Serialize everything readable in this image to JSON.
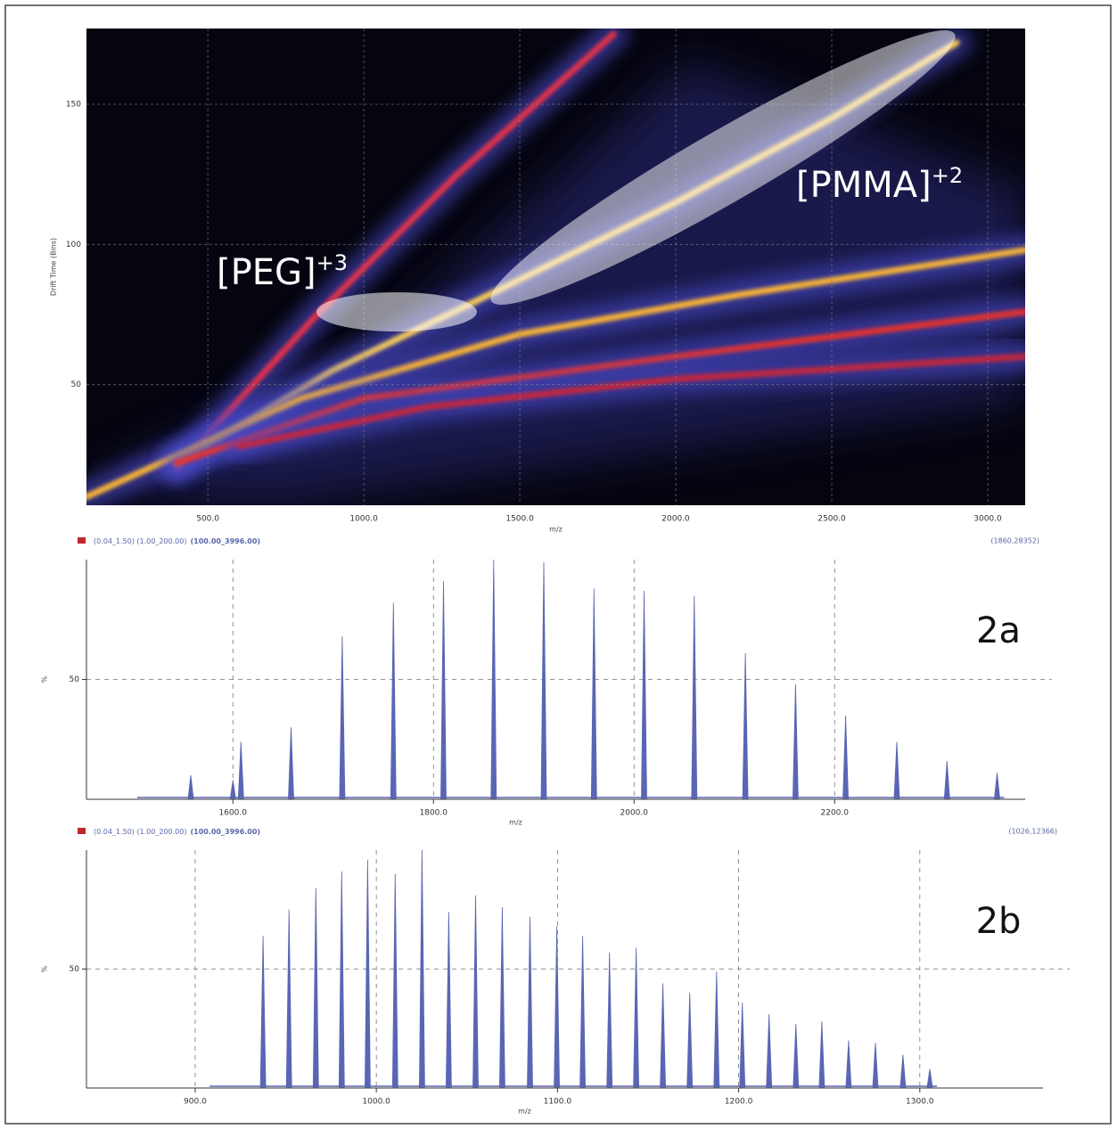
{
  "chart_data": [
    {
      "type": "density",
      "xlabel": "m/z",
      "ylabel": "Drift Time (Bins)",
      "xlim": [
        111,
        3120
      ],
      "ylim": [
        7,
        177
      ],
      "xticks": [
        {
          "value": 500,
          "label": "500.0"
        },
        {
          "value": 1000,
          "label": "1000.0"
        },
        {
          "value": 1500,
          "label": "1500.0"
        },
        {
          "value": 2000,
          "label": "2000.0"
        },
        {
          "value": 2500,
          "label": "2500.0"
        },
        {
          "value": 3000,
          "label": "3000.0"
        }
      ],
      "yticks": [
        50,
        100,
        150
      ],
      "grid": true,
      "series": [
        {
          "color": "#e8324a",
          "x": [
            400,
            850,
            1300,
            1800
          ],
          "values": [
            20,
            75,
            125,
            175
          ]
        },
        {
          "color": "#ffd25a",
          "x": [
            400,
            900,
            1400,
            2000,
            2500,
            2900
          ],
          "values": [
            22,
            55,
            82,
            115,
            145,
            172
          ]
        },
        {
          "color": "#ffb830",
          "x": [
            111,
            800,
            1500,
            2200,
            3120
          ],
          "values": [
            10,
            45,
            68,
            82,
            98
          ]
        },
        {
          "color": "#e8322a",
          "x": [
            400,
            1000,
            2000,
            3120
          ],
          "values": [
            22,
            45,
            60,
            76
          ]
        },
        {
          "color": "#c8283a",
          "x": [
            600,
            1200,
            2000,
            3120
          ],
          "values": [
            28,
            42,
            52,
            60
          ]
        }
      ],
      "annotations": [
        {
          "text": "[PEG]",
          "sup": "+3"
        },
        {
          "text": "[PMMA]",
          "sup": "+2"
        }
      ]
    },
    {
      "type": "spectrum",
      "panel": "2a",
      "subtitle": "(0.04_1.50) (1.00_200.00)",
      "subtitle_bold": "(100.00_3996.00)",
      "peak_label": "(1860,28352)",
      "xlabel": "m/z",
      "ylabel": "%",
      "xlim": [
        1454,
        2390
      ],
      "ylim": [
        0,
        100
      ],
      "xticks": [
        {
          "value": 1600,
          "label": "1600.0"
        },
        {
          "value": 1800,
          "label": "1800.0"
        },
        {
          "value": 2000,
          "label": "2000.0"
        },
        {
          "value": 2200,
          "label": "2200.0"
        }
      ],
      "yticks": [
        50
      ],
      "grid": true,
      "color": "#5a66b4",
      "x": [
        1558,
        1600,
        1608,
        1658,
        1709,
        1760,
        1810,
        1860,
        1910,
        1960,
        2010,
        2060,
        2111,
        2161,
        2211,
        2262,
        2312,
        2362
      ],
      "values": [
        10,
        8,
        24,
        30,
        68,
        82,
        91,
        100,
        99,
        88,
        87,
        85,
        61,
        48,
        35,
        24,
        16,
        11
      ]
    },
    {
      "type": "spectrum",
      "panel": "2b",
      "subtitle": "(0.04_1.50) (1.00_200.00)",
      "subtitle_bold": "(100.00_3996.00)",
      "peak_label": "(1026,12366)",
      "xlabel": "m/z",
      "ylabel": "%",
      "xlim": [
        840,
        1368
      ],
      "ylim": [
        0,
        100
      ],
      "xticks": [
        {
          "value": 900,
          "label": "900.0"
        },
        {
          "value": 1000,
          "label": "1000.0"
        },
        {
          "value": 1100,
          "label": "1100.0"
        },
        {
          "value": 1200,
          "label": "1200.0"
        },
        {
          "value": 1300,
          "label": "1300.0"
        }
      ],
      "yticks": [
        50
      ],
      "grid": true,
      "color": "#5a66b4",
      "x": [
        937.5,
        951.8,
        966.6,
        980.9,
        995.2,
        1010.4,
        1025.2,
        1040,
        1054.8,
        1069.5,
        1084.8,
        1099.6,
        1113.9,
        1128.7,
        1143.4,
        1158.2,
        1173,
        1187.8,
        1202,
        1216.8,
        1231.6,
        1245.9,
        1260.7,
        1275.5,
        1290.7,
        1305.5
      ],
      "values": [
        64,
        75,
        84,
        91,
        96,
        90,
        100,
        74,
        81,
        76,
        72,
        68,
        64,
        57,
        59,
        44,
        40,
        49,
        36,
        31,
        27,
        28,
        20,
        19,
        14,
        8
      ]
    }
  ]
}
